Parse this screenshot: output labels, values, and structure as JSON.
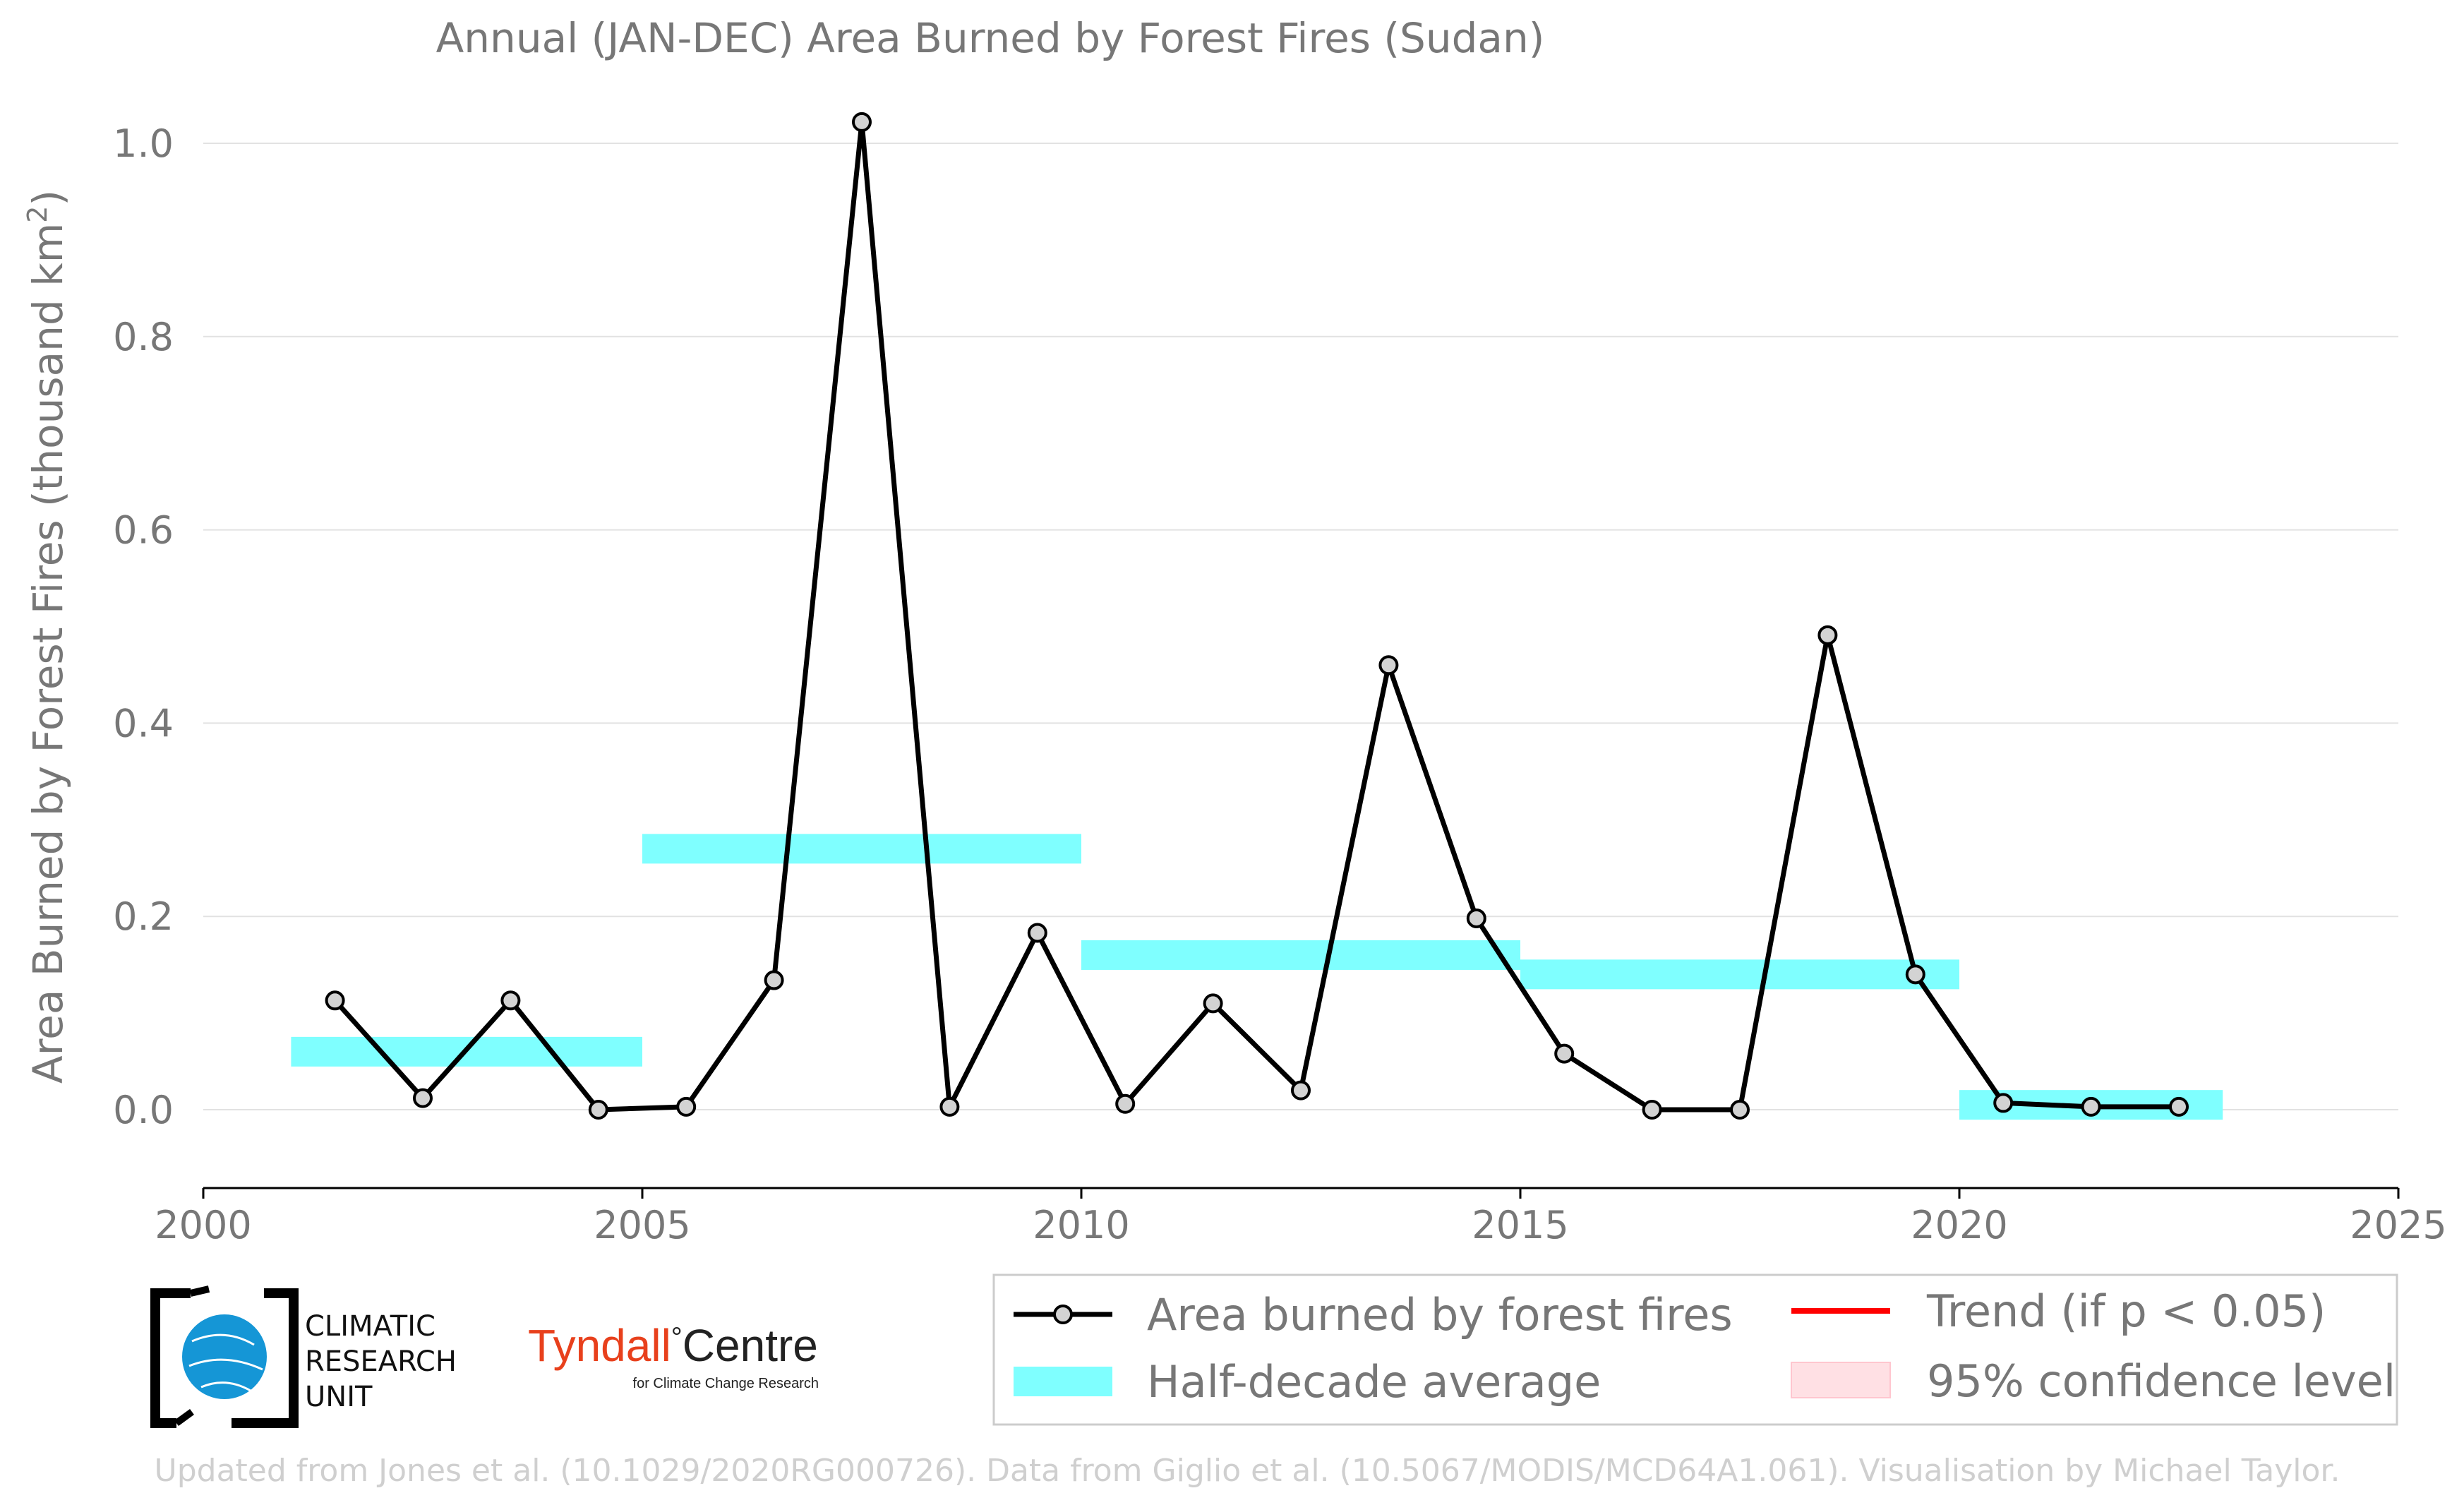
{
  "chart_data": {
    "type": "line",
    "title": "Annual (JAN-DEC) Area Burned by Forest Fires (Sudan)",
    "ylabel": "Area Burned by Forest Fires (thousand km",
    "ylabel_superscript": "2",
    "ylabel_close": ")",
    "xlim": [
      2000,
      2025
    ],
    "ylim": [
      -0.08,
      1.05
    ],
    "xticks": [
      "2000",
      "2005",
      "2010",
      "2015",
      "2020",
      "2025"
    ],
    "xtick_values": [
      2000,
      2005,
      2010,
      2015,
      2020,
      2025
    ],
    "yticks": [
      "0.0",
      "0.2",
      "0.4",
      "0.6",
      "0.8",
      "1.0"
    ],
    "ytick_values": [
      0.0,
      0.2,
      0.4,
      0.6,
      0.8,
      1.0
    ],
    "grid": "horizontal",
    "series": [
      {
        "name": "Area burned by forest fires",
        "color": "#000000",
        "marker_fill": "#d3d3d3",
        "x": [
          2001.5,
          2002.5,
          2003.5,
          2004.5,
          2005.5,
          2006.5,
          2007.5,
          2008.5,
          2009.5,
          2010.5,
          2011.5,
          2012.5,
          2013.5,
          2014.5,
          2015.5,
          2016.5,
          2017.5,
          2018.5,
          2019.5,
          2020.5,
          2021.5,
          2022.5
        ],
        "values": [
          0.113,
          0.012,
          0.113,
          0.0,
          0.003,
          0.134,
          1.022,
          0.003,
          0.183,
          0.006,
          0.11,
          0.02,
          0.46,
          0.198,
          0.058,
          0.0,
          0.0,
          0.491,
          0.14,
          0.007,
          0.003,
          0.003
        ]
      }
    ],
    "half_decade_average": {
      "name": "Half-decade average",
      "color": "#7fffff",
      "segments": [
        {
          "x0": 2001,
          "x1": 2005,
          "value": 0.06
        },
        {
          "x0": 2005,
          "x1": 2010,
          "value": 0.27
        },
        {
          "x0": 2010,
          "x1": 2015,
          "value": 0.16
        },
        {
          "x0": 2015,
          "x1": 2020,
          "value": 0.14
        },
        {
          "x0": 2020,
          "x1": 2023,
          "value": 0.005
        }
      ]
    },
    "legend": {
      "placement": "bottom-right",
      "items": [
        {
          "label": "Area burned by forest fires",
          "kind": "line-marker",
          "color": "#000000"
        },
        {
          "label": "Trend (if p < 0.05)",
          "kind": "line",
          "color": "#ff0000"
        },
        {
          "label": "Half-decade average",
          "kind": "band",
          "color": "#7fffff"
        },
        {
          "label": "95% confidence level",
          "kind": "box",
          "color": "#ffe0e4"
        }
      ]
    }
  },
  "logos": {
    "cru_lines": [
      "CLIMATIC",
      "RESEARCH",
      "UNIT"
    ],
    "tyndall_red": "Tyndall",
    "tyndall_dark": "Centre",
    "tyndall_sub": "for Climate Change Research"
  },
  "credit": "Updated from Jones et al. (10.1029/2020RG000726). Data from Giglio et al. (10.5067/MODIS/MCD64A1.061). Visualisation by Michael Taylor."
}
